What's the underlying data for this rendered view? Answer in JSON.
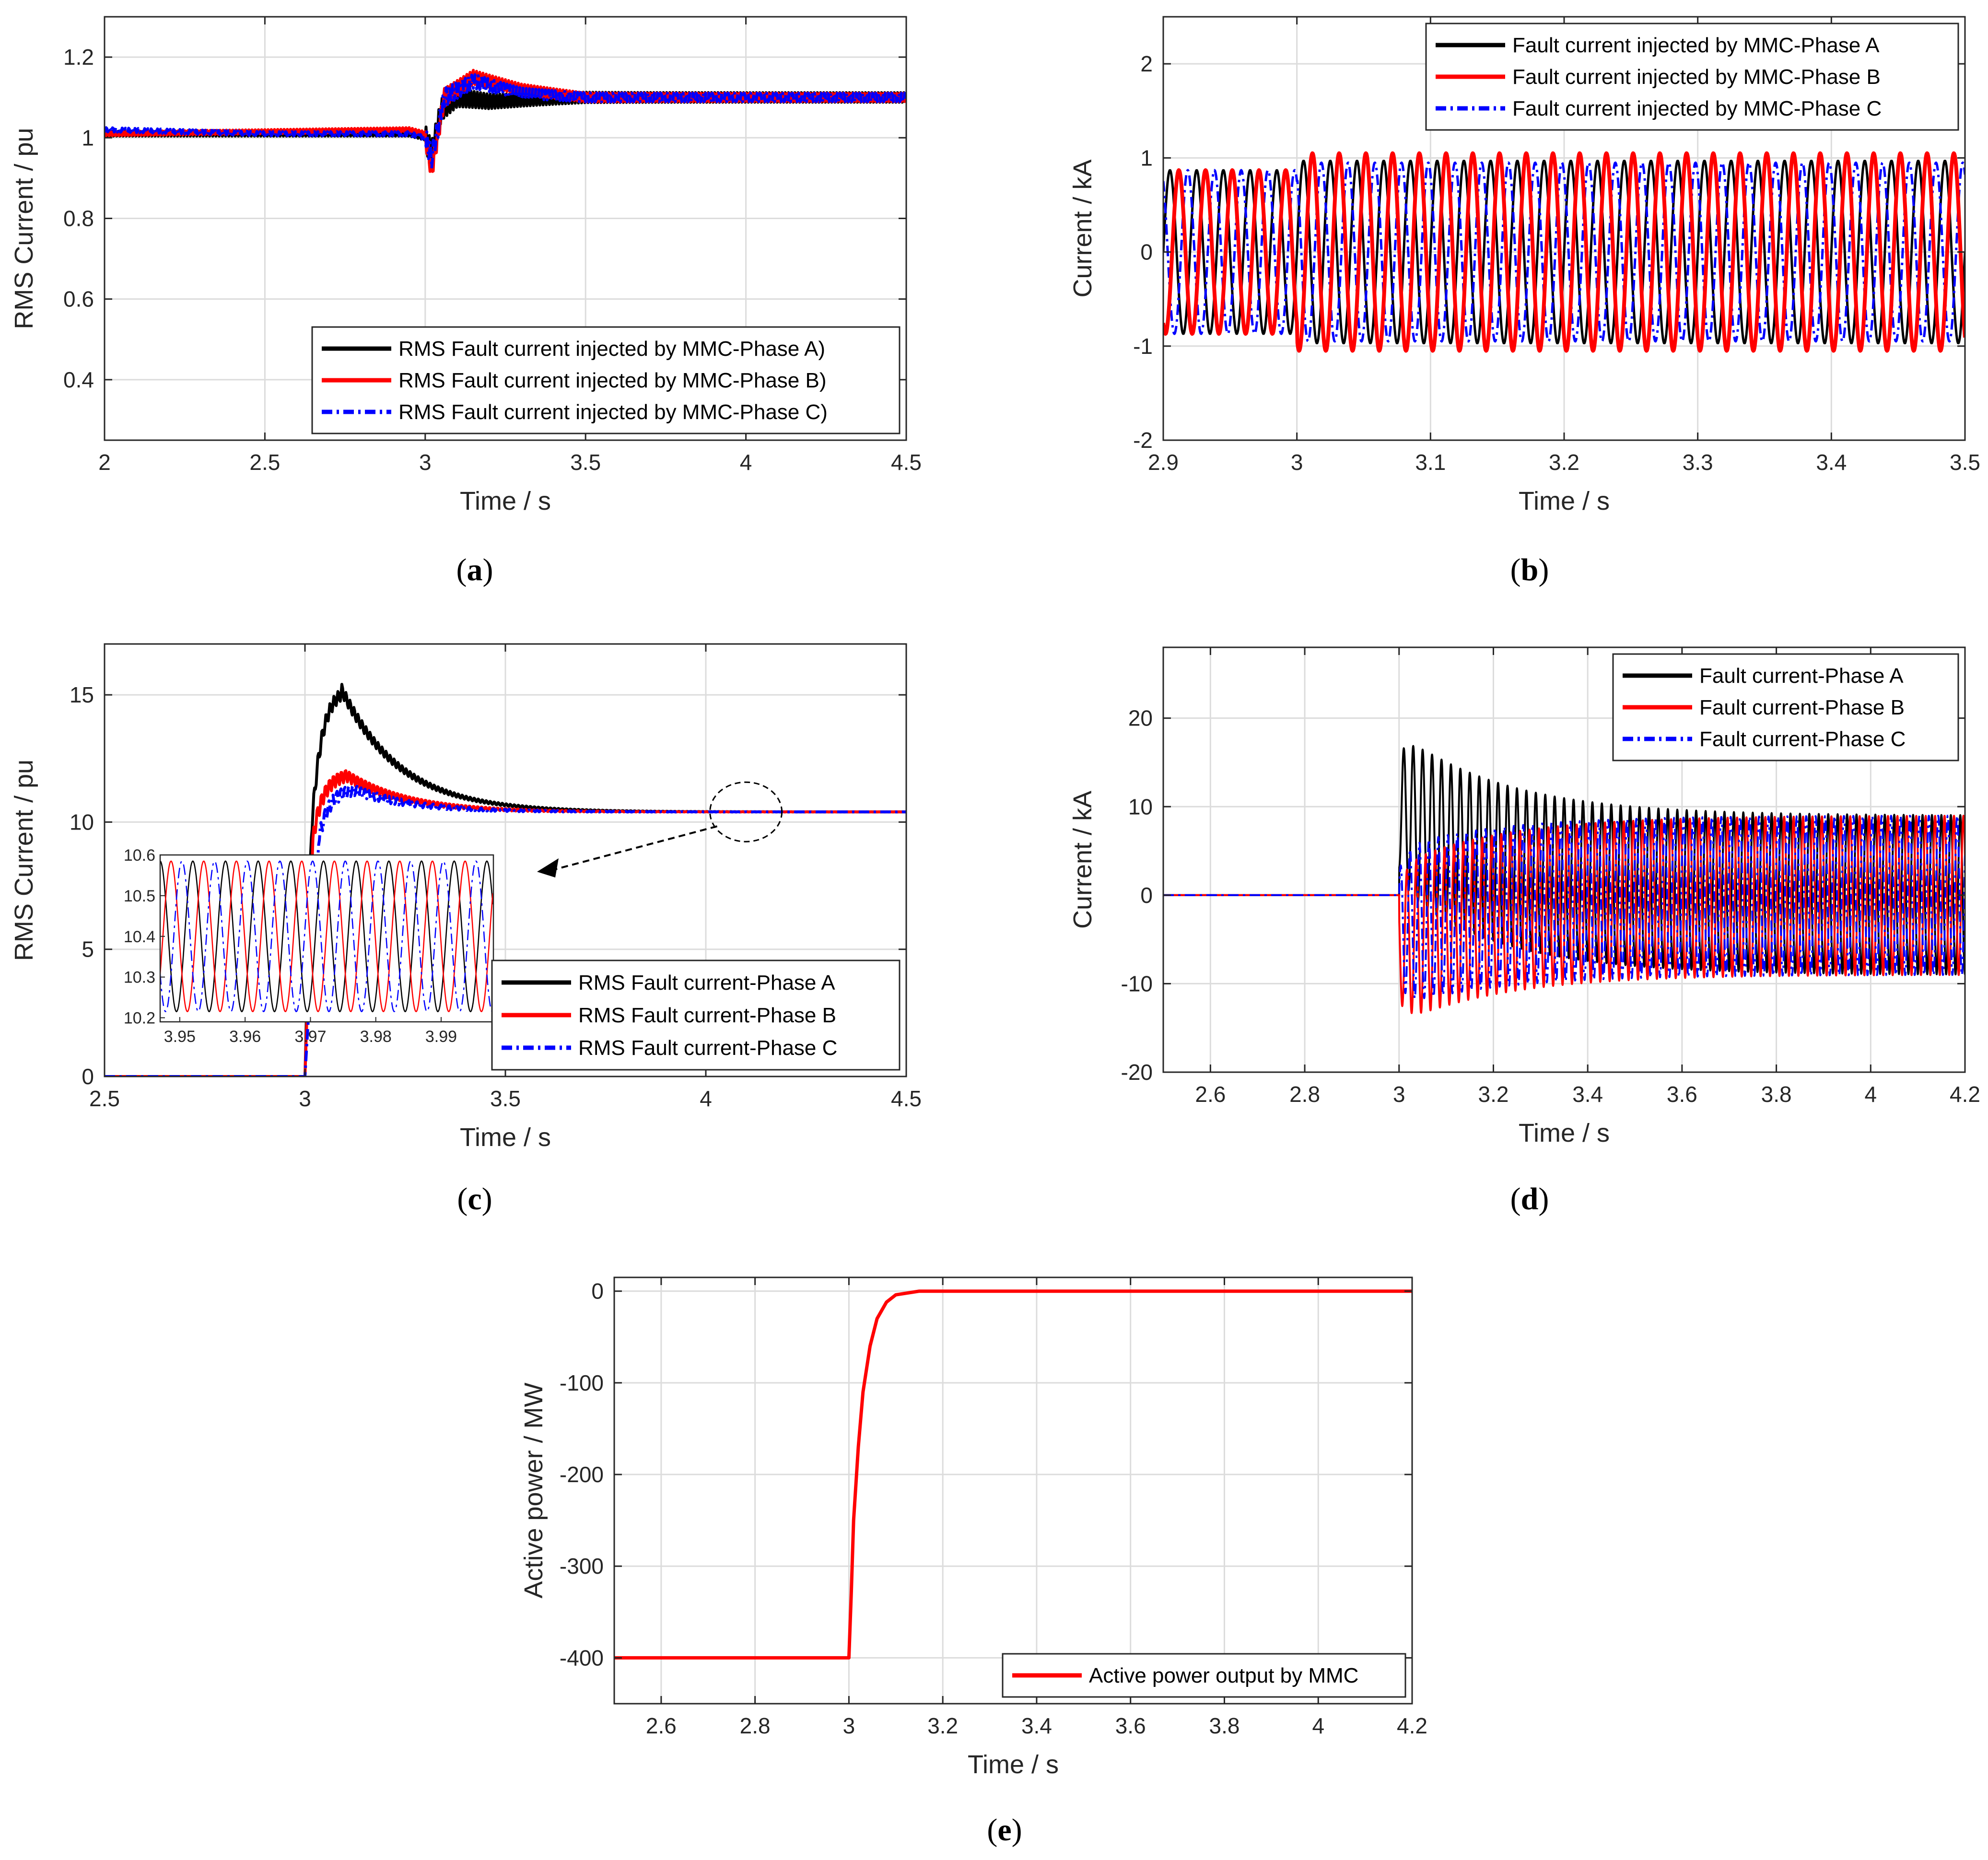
{
  "figure": {
    "captions": [
      "a",
      "b",
      "c",
      "d",
      "e"
    ]
  },
  "chart_data": [
    {
      "id": "a",
      "type": "line",
      "xlabel": "Time / s",
      "ylabel": "RMS Current / pu",
      "xlim": [
        2,
        4.5
      ],
      "ylim": [
        0.25,
        1.3
      ],
      "xticks": [
        2,
        2.5,
        3,
        3.5,
        4,
        4.5
      ],
      "xtick_labels": [
        "2",
        "2.5",
        "3",
        "3.5",
        "4",
        "4.5"
      ],
      "yticks": [
        0.4,
        0.6,
        0.8,
        1,
        1.2
      ],
      "ytick_labels": [
        "0.4",
        "0.6",
        "0.8",
        "1",
        "1.2"
      ],
      "grid": true,
      "legend_position": "bottom-right",
      "series": [
        {
          "name": "RMS Fault current injected by MMC-Phase A)",
          "color": "#000000",
          "style": "solid",
          "points": [
            [
              2,
              1.01
            ],
            [
              2.5,
              1.01
            ],
            [
              2.95,
              1.01
            ],
            [
              3.0,
              1.0
            ],
            [
              3.02,
              0.96
            ],
            [
              3.05,
              1.07
            ],
            [
              3.1,
              1.1
            ],
            [
              3.2,
              1.09
            ],
            [
              3.5,
              1.1
            ],
            [
              4.0,
              1.1
            ],
            [
              4.5,
              1.1
            ]
          ]
        },
        {
          "name": "RMS Fault current injected by MMC-Phase B)",
          "color": "#ff0000",
          "style": "solid",
          "points": [
            [
              2,
              1.01
            ],
            [
              2.5,
              1.015
            ],
            [
              2.95,
              1.02
            ],
            [
              3.0,
              1.01
            ],
            [
              3.02,
              0.92
            ],
            [
              3.06,
              1.1
            ],
            [
              3.15,
              1.15
            ],
            [
              3.3,
              1.12
            ],
            [
              3.5,
              1.1
            ],
            [
              4.0,
              1.1
            ],
            [
              4.5,
              1.1
            ]
          ]
        },
        {
          "name": "RMS Fault current injected by MMC-Phase C)",
          "color": "#0000ff",
          "style": "dashdot",
          "points": [
            [
              2,
              1.02
            ],
            [
              2.5,
              1.01
            ],
            [
              2.95,
              1.01
            ],
            [
              3.0,
              1.0
            ],
            [
              3.02,
              0.95
            ],
            [
              3.06,
              1.1
            ],
            [
              3.15,
              1.14
            ],
            [
              3.3,
              1.11
            ],
            [
              3.5,
              1.1
            ],
            [
              4.0,
              1.1
            ],
            [
              4.5,
              1.1
            ]
          ]
        }
      ]
    },
    {
      "id": "b",
      "type": "line",
      "xlabel": "Time / s",
      "ylabel": "Current / kA",
      "xlim": [
        2.9,
        3.5
      ],
      "ylim": [
        -2,
        2.5
      ],
      "xticks": [
        2.9,
        3.0,
        3.1,
        3.2,
        3.3,
        3.4,
        3.5
      ],
      "xtick_labels": [
        "2.9",
        "3",
        "3.1",
        "3.2",
        "3.3",
        "3.4",
        "3.5"
      ],
      "yticks": [
        -2,
        -1,
        0,
        1,
        2
      ],
      "ytick_labels": [
        "-2",
        "-1",
        "0",
        "1",
        "2"
      ],
      "grid": true,
      "legend_position": "top-right",
      "frequency_hz": 50,
      "fault_time_s": 3.0,
      "series": [
        {
          "name": "Fault current injected by MMC-Phase A",
          "color": "#000000",
          "style": "solid",
          "amplitude_prefault_kA": 0.87,
          "amplitude_postfault_kA": 0.97,
          "phase_deg": 0
        },
        {
          "name": "Fault current injected by MMC-Phase B",
          "color": "#ff0000",
          "style": "solid",
          "amplitude_prefault_kA": 0.87,
          "amplitude_postfault_kA": 1.05,
          "phase_deg": -120
        },
        {
          "name": "Fault current injected by MMC-Phase C",
          "color": "#0000ff",
          "style": "dashdot",
          "amplitude_prefault_kA": 0.87,
          "amplitude_postfault_kA": 0.95,
          "phase_deg": 120
        }
      ]
    },
    {
      "id": "c",
      "type": "line",
      "xlabel": "Time / s",
      "ylabel": "RMS Current / pu",
      "xlim": [
        2.5,
        4.5
      ],
      "ylim": [
        0,
        17
      ],
      "xticks": [
        2.5,
        3,
        3.5,
        4,
        4.5
      ],
      "xtick_labels": [
        "2.5",
        "3",
        "3.5",
        "4",
        "4.5"
      ],
      "yticks": [
        0,
        5,
        10,
        15
      ],
      "ytick_labels": [
        "0",
        "5",
        "10",
        "15"
      ],
      "grid": true,
      "legend_position": "bottom-right",
      "series": [
        {
          "name": "RMS Fault current-Phase A",
          "color": "#000000",
          "style": "solid",
          "steady_pu": 10.4,
          "peak_pu": 15.3,
          "peak_time_s": 3.09
        },
        {
          "name": "RMS Fault current-Phase B",
          "color": "#ff0000",
          "style": "solid",
          "steady_pu": 10.4,
          "peak_pu": 11.9,
          "peak_time_s": 3.1
        },
        {
          "name": "RMS Fault current-Phase C",
          "color": "#0000ff",
          "style": "dashdot",
          "steady_pu": 10.4,
          "peak_pu": 11.3,
          "peak_time_s": 3.12
        }
      ],
      "inset": {
        "xlim": [
          3.947,
          3.998
        ],
        "ylim": [
          10.19,
          10.6
        ],
        "xticks": [
          3.95,
          3.96,
          3.97,
          3.98,
          3.99
        ],
        "xtick_labels": [
          "3.95",
          "3.96",
          "3.97",
          "3.98",
          "3.99"
        ],
        "yticks": [
          10.2,
          10.3,
          10.4,
          10.5,
          10.6
        ],
        "ytick_labels": [
          "10.2",
          "10.3",
          "10.4",
          "10.5",
          "10.6"
        ],
        "center_pu": 10.4,
        "amplitude_pu": 0.185,
        "frequency_hz": 200,
        "phases_deg": [
          0,
          -120,
          120
        ]
      },
      "annotation": "zoom-circle at t≈4.1 s pointing to inset"
    },
    {
      "id": "d",
      "type": "line",
      "xlabel": "Time / s",
      "ylabel": "Current / kA",
      "xlim": [
        2.5,
        4.2
      ],
      "ylim": [
        -20,
        28
      ],
      "xticks": [
        2.6,
        2.8,
        3.0,
        3.2,
        3.4,
        3.6,
        3.8,
        4.0,
        4.2
      ],
      "xtick_labels": [
        "2.6",
        "2.8",
        "3",
        "3.2",
        "3.4",
        "3.6",
        "3.8",
        "4",
        "4.2"
      ],
      "yticks": [
        -20,
        -10,
        0,
        10,
        20
      ],
      "ytick_labels": [
        "-20",
        "-10",
        "0",
        "10",
        "20"
      ],
      "grid": true,
      "legend_position": "top-right",
      "fault_time_s": 3.0,
      "series": [
        {
          "name": "Fault current-Phase A",
          "color": "#000000",
          "style": "solid",
          "peak_kA": 18.5,
          "steady_amplitude_kA": 9
        },
        {
          "name": "Fault current-Phase B",
          "color": "#ff0000",
          "style": "solid",
          "peak_kA": -14.5,
          "steady_amplitude_kA": 9
        },
        {
          "name": "Fault current-Phase C",
          "color": "#0000ff",
          "style": "dashdot",
          "peak_kA": -12,
          "steady_amplitude_kA": 9
        }
      ]
    },
    {
      "id": "e",
      "type": "line",
      "xlabel": "Time / s",
      "ylabel": "Active power / MW",
      "xlim": [
        2.5,
        4.2
      ],
      "ylim": [
        -450,
        15
      ],
      "xticks": [
        2.6,
        2.8,
        3.0,
        3.2,
        3.4,
        3.6,
        3.8,
        4.0,
        4.2
      ],
      "xtick_labels": [
        "2.6",
        "2.8",
        "3",
        "3.2",
        "3.4",
        "3.6",
        "3.8",
        "4",
        "4.2"
      ],
      "yticks": [
        -400,
        -300,
        -200,
        -100,
        0
      ],
      "ytick_labels": [
        "-400",
        "-300",
        "-200",
        "-100",
        "0"
      ],
      "grid": true,
      "legend_position": "bottom-right",
      "series": [
        {
          "name": "Active power output by MMC",
          "color": "#ff0000",
          "style": "solid",
          "points": [
            [
              2.5,
              -400
            ],
            [
              3.0,
              -400
            ],
            [
              3.005,
              -330
            ],
            [
              3.01,
              -250
            ],
            [
              3.02,
              -170
            ],
            [
              3.03,
              -110
            ],
            [
              3.045,
              -60
            ],
            [
              3.06,
              -30
            ],
            [
              3.08,
              -12
            ],
            [
              3.1,
              -4
            ],
            [
              3.15,
              0
            ],
            [
              4.2,
              0
            ]
          ]
        }
      ]
    }
  ]
}
